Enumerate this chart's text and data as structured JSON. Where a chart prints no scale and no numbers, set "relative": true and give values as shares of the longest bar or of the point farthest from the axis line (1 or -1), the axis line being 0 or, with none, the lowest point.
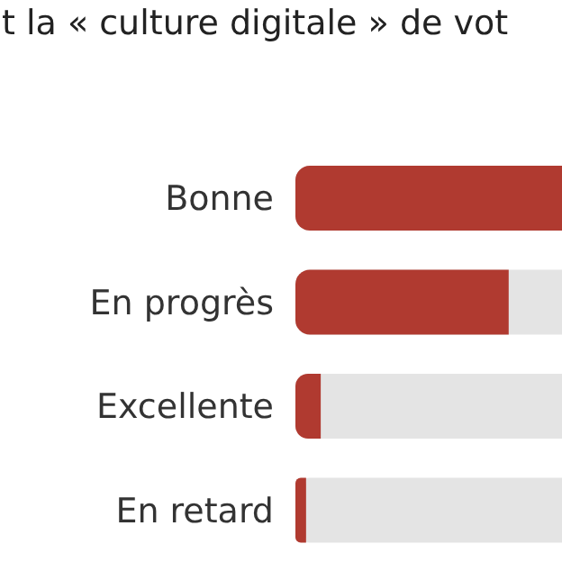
{
  "chart_data": {
    "type": "bar",
    "orientation": "horizontal",
    "relative": true,
    "title": "t la « culture digitale » de vot",
    "categories": [
      "Bonne",
      "En progrès",
      "Excellente",
      "En retard"
    ],
    "values": [
      1,
      0.8,
      0.095,
      0.04
    ],
    "color": "#b03a30"
  }
}
